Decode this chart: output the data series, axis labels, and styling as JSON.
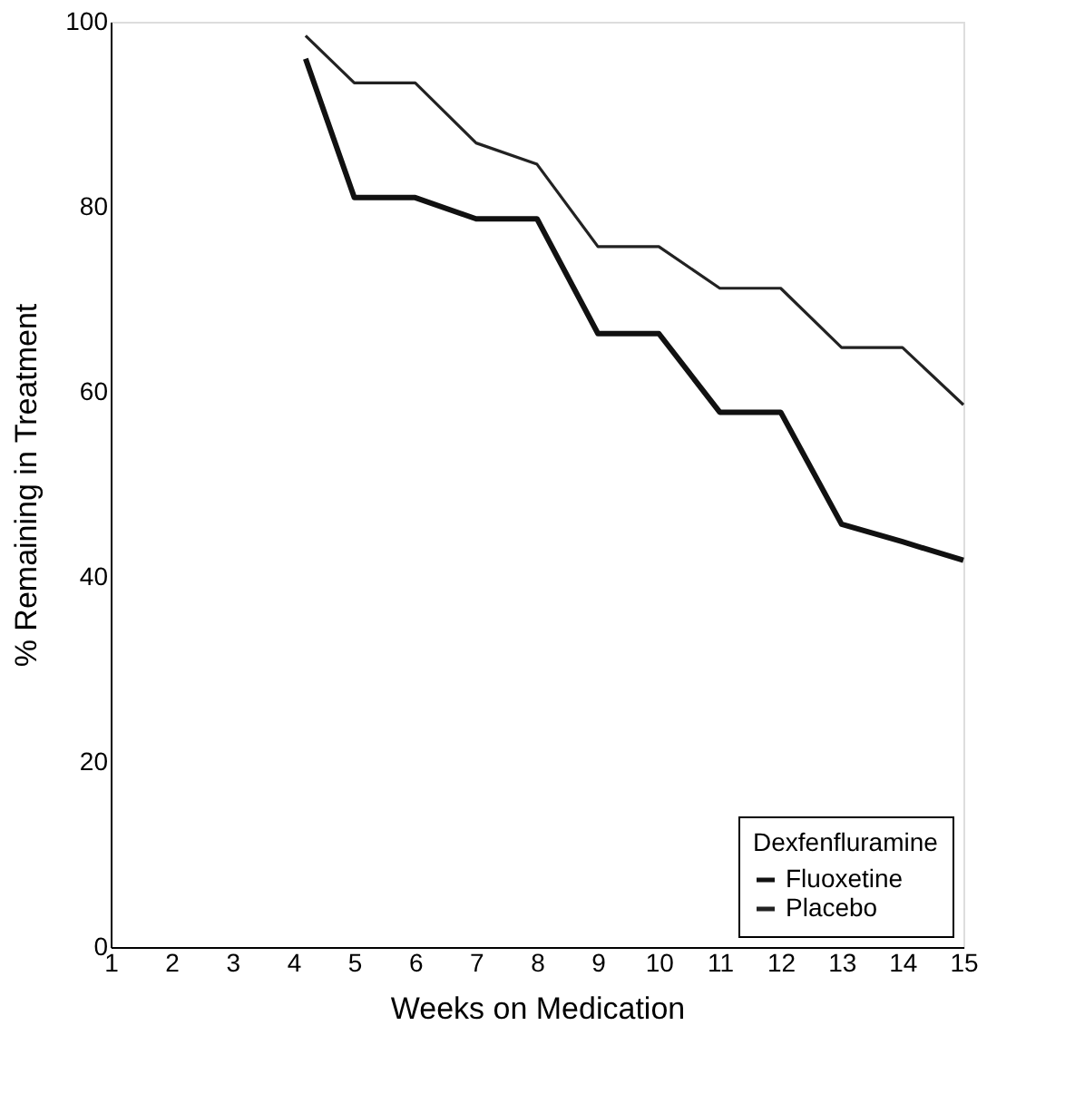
{
  "chart_data": {
    "type": "line",
    "xlabel": "Weeks on Medication",
    "ylabel": "% Remaining in Treatment",
    "legend_title": "Dexfenfluramine",
    "xlim": [
      1,
      15
    ],
    "xticks": [
      1,
      2,
      3,
      4,
      5,
      6,
      7,
      8,
      9,
      10,
      11,
      12,
      13,
      14,
      15
    ],
    "ylim": [
      0,
      100
    ],
    "yticks": [
      0,
      20,
      40,
      60,
      80,
      100
    ],
    "grid": false,
    "legend": "bottom right",
    "marker": "none",
    "line_style": "solid",
    "series": [
      {
        "name": "Fluoxetine",
        "color": "#111111",
        "x": [
          4.2,
          5,
          6,
          7,
          8,
          9,
          10,
          11,
          12,
          13,
          14,
          15
        ],
        "values": [
          96,
          81,
          81,
          78.7,
          78.7,
          66.3,
          66.3,
          57.8,
          57.8,
          45.7,
          43.8,
          41.8
        ]
      },
      {
        "name": "Placebo",
        "color": "#222222",
        "x": [
          4.2,
          5,
          6,
          7,
          8,
          9,
          10,
          11,
          12,
          13,
          14,
          15
        ],
        "values": [
          98.5,
          93.4,
          93.4,
          86.9,
          84.6,
          75.7,
          75.7,
          71.2,
          71.2,
          64.8,
          64.8,
          58.6
        ]
      }
    ]
  }
}
